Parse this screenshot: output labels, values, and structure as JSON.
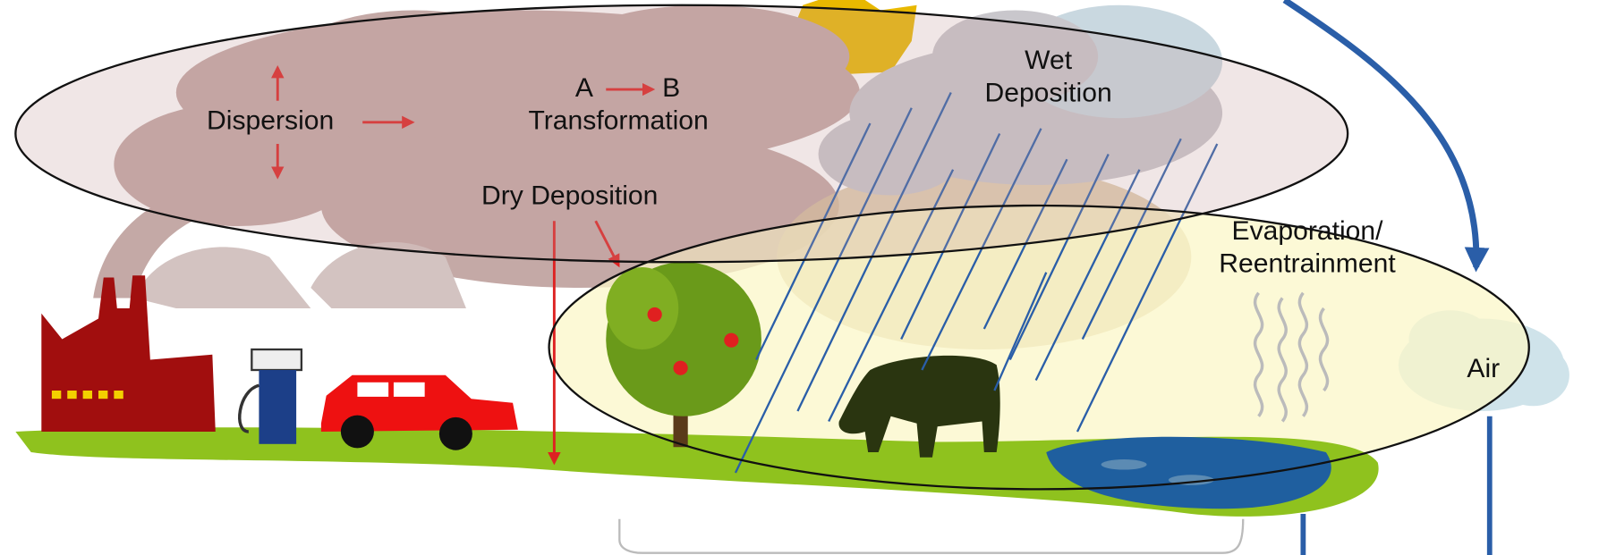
{
  "labels": {
    "dispersion": "Dispersion",
    "transformation_from": "A",
    "transformation_to": "B",
    "transformation": "Transformation",
    "dry_deposition": "Dry Deposition",
    "wet_deposition": [
      "Wet",
      "Deposition"
    ],
    "evaporation": [
      "Evaporation/",
      "Reentrainment"
    ],
    "air": "Air"
  }
}
